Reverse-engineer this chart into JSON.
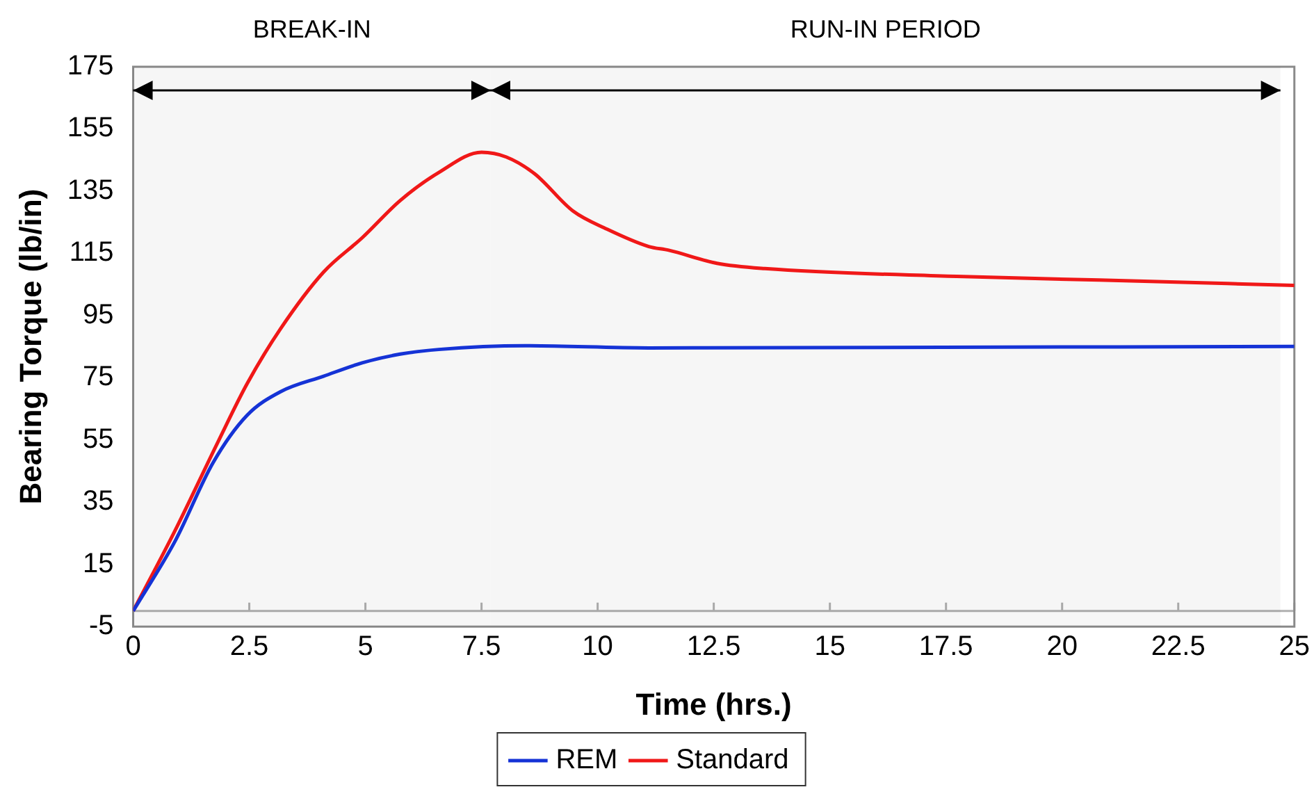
{
  "chart_data": {
    "type": "line",
    "xlabel": "Time (hrs.)",
    "ylabel": "Bearing Torque (lb/in)",
    "xlim": [
      0,
      25
    ],
    "xticks": [
      0,
      2.5,
      5,
      7.5,
      10,
      12.5,
      15,
      17.5,
      20,
      22.5,
      25
    ],
    "ylim": [
      -5,
      175
    ],
    "yticks": [
      -5,
      15,
      35,
      55,
      75,
      95,
      115,
      135,
      155,
      175
    ],
    "grid": false,
    "legend": "bottom",
    "marker": "none",
    "line_style": "solid",
    "series": [
      {
        "name": "REM",
        "color": "#1533d6",
        "x": [
          0,
          0.9,
          1.72,
          2.45,
          3.17,
          4.1,
          4.93,
          5.75,
          6.58,
          8.44,
          11.1,
          25
        ],
        "values": [
          0,
          22.4,
          47.7,
          62.9,
          70.5,
          75.5,
          79.8,
          82.6,
          84.1,
          85.3,
          84.6,
          85.1
        ]
      },
      {
        "name": "Standard",
        "color": "#f01818",
        "x": [
          0,
          0.9,
          1.83,
          2.45,
          3.17,
          4.1,
          4.93,
          5.75,
          6.58,
          7.5,
          8.03,
          8.65,
          9.47,
          10.2,
          11.1,
          11.53,
          12.57,
          13.6,
          17.73,
          20.8,
          25
        ],
        "values": [
          0,
          25.8,
          54.5,
          73,
          90.7,
          109,
          120,
          132,
          141,
          147.5,
          146,
          140.5,
          128.6,
          122.8,
          117.2,
          116,
          111.8,
          110.1,
          107.6,
          106.4,
          104.7
        ]
      }
    ],
    "ref_lines": [
      {
        "axis": "y",
        "value": 0,
        "color": "#b0b0b0"
      }
    ],
    "bands": [
      {
        "axis": "x",
        "from": 0,
        "to": 7.7,
        "label": "BREAK-IN",
        "color": "#000000"
      },
      {
        "axis": "x",
        "from": 7.7,
        "to": 24.7,
        "label": "RUN-IN PERIOD",
        "color": "#000000"
      }
    ]
  }
}
